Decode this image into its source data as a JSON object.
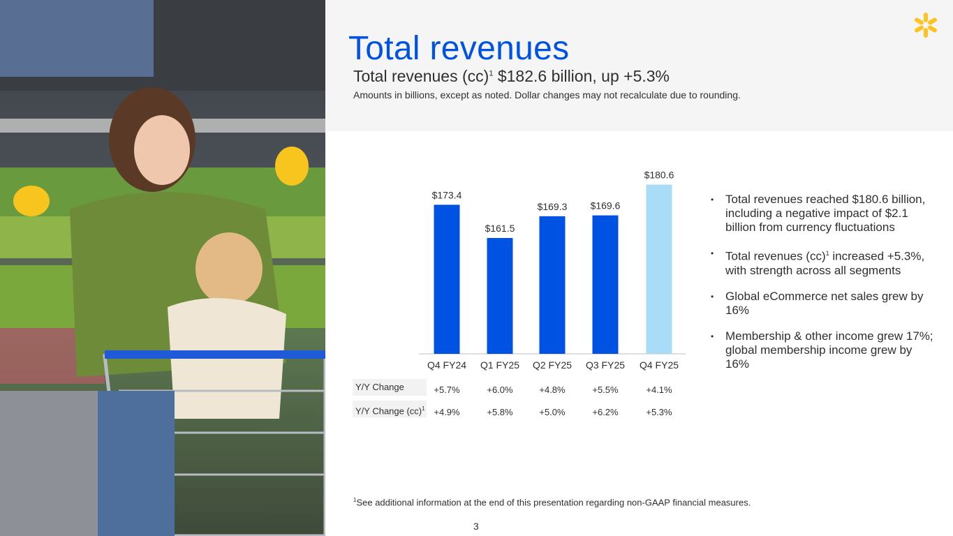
{
  "header": {
    "title": "Total revenues",
    "subtitle_main": "Total revenues (cc)",
    "subtitle_sup": "1",
    "subtitle_rest": " $182.6 billion, up +5.3%",
    "note": "Amounts in billions, except as noted.  Dollar changes may not recalculate due to rounding."
  },
  "colors": {
    "accent": "#0053e2",
    "highlight": "#a9ddf7",
    "spark": "#ffc220"
  },
  "chart_data": {
    "type": "bar",
    "categories": [
      "Q4 FY24",
      "Q1 FY25",
      "Q2 FY25",
      "Q3 FY25",
      "Q4 FY25"
    ],
    "values": [
      173.4,
      161.5,
      169.3,
      169.6,
      180.6
    ],
    "labels": [
      "$173.4",
      "$161.5",
      "$169.3",
      "$169.6",
      "$180.6"
    ],
    "colors": [
      "#0053e2",
      "#0053e2",
      "#0053e2",
      "#0053e2",
      "#a9ddf7"
    ],
    "ylim": [
      120,
      185
    ],
    "grid": false,
    "legend": "none"
  },
  "yy_table": {
    "row1_label": "Y/Y Change",
    "row2_label": "Y/Y Change (cc)",
    "row2_sup": "1",
    "row1": [
      "+5.7%",
      "+6.0%",
      "+4.8%",
      "+5.5%",
      "+4.1%"
    ],
    "row2": [
      "+4.9%",
      "+5.8%",
      "+5.0%",
      "+6.2%",
      "+5.3%"
    ]
  },
  "bullets": {
    "b1": "Total revenues reached $180.6 billion, including a negative impact of $2.1 billion from currency fluctuations",
    "b2_pre": "Total revenues (cc)",
    "b2_sup": "1",
    "b2_post": " increased +5.3%, with strength across all segments",
    "b3": "Global eCommerce net sales grew by 16%",
    "b4": "Membership & other income grew 17%; global membership income grew by 16%"
  },
  "footer": {
    "footnote_sup": "1",
    "footnote": "See additional information at the end of this presentation regarding non-GAAP financial measures.",
    "page_number": "3"
  }
}
